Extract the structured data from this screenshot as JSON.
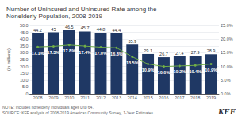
{
  "chart_data": {
    "type": "bar",
    "title": "Number of Uninsured and Uninsured Rate among the\nNonelderly Population, 2008-2019",
    "ylabel": "(in millions)",
    "categories": [
      "2008",
      "2009",
      "2010",
      "2011",
      "2012",
      "2013",
      "2014",
      "2015",
      "2016",
      "2017",
      "2018",
      "2019"
    ],
    "series": [
      {
        "type": "bar",
        "color": "#1f3864",
        "data_labels": true,
        "values": [
          44.2,
          45.0,
          46.5,
          45.7,
          44.8,
          44.4,
          35.9,
          29.1,
          26.7,
          27.4,
          27.9,
          28.9
        ]
      },
      {
        "type": "line",
        "axis": "y2",
        "color": "#70ad47",
        "marker": "circle",
        "data_labels": true,
        "values": [
          17.1,
          17.3,
          17.8,
          17.4,
          17.0,
          16.8,
          13.5,
          10.9,
          10.0,
          10.2,
          10.4,
          10.9
        ],
        "value_labels": [
          "17.1%",
          "17.3%",
          "17.8%",
          "17.4%",
          "17.0%",
          "16.8%",
          "13.5%",
          "10.9%",
          "10.0%",
          "10.2%",
          "10.4%",
          "10.9%"
        ]
      }
    ],
    "ylim": [
      0,
      50
    ],
    "yticks": [
      0,
      {
        "value": 5,
        "label": "5.0"
      },
      {
        "value": 10,
        "label": "10.0"
      },
      {
        "value": 15,
        "label": "15.0"
      },
      {
        "value": 20,
        "label": "20.0"
      },
      {
        "value": 25,
        "label": "25.0"
      },
      {
        "value": 30,
        "label": "30.0"
      },
      {
        "value": 35,
        "label": "35.0"
      },
      {
        "value": 40,
        "label": "40.0"
      },
      {
        "value": 45,
        "label": "45.0"
      },
      {
        "value": 50,
        "label": "50.0"
      }
    ],
    "y2lim": [
      0,
      25
    ],
    "y2ticks": [
      {
        "value": 0,
        "label": "0.0%"
      },
      {
        "value": 5,
        "label": "5.0%"
      },
      {
        "value": 10,
        "label": "10.0%"
      },
      {
        "value": 15,
        "label": "15.0%"
      },
      {
        "value": 20,
        "label": "20.0%"
      },
      {
        "value": 25,
        "label": "25.0%"
      }
    ],
    "grid": true,
    "annotations": [
      "NOTE: Includes nonelderly individuals ages 0 to 64.",
      "SOURCE: KFF analysis of 2008-2019 American Community Survey, 1-Year Estimates.",
      "KFF"
    ]
  }
}
